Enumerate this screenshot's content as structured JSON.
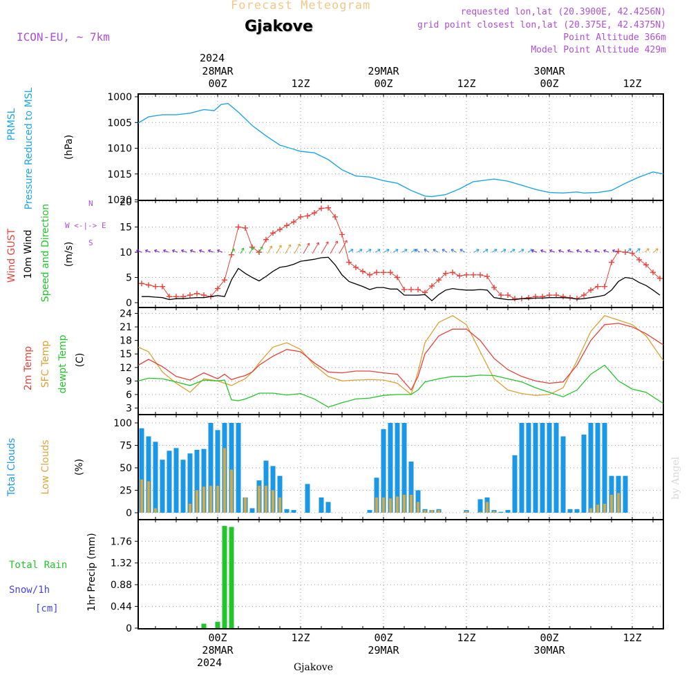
{
  "header": {
    "forecast_label": "Forecast Meteogram",
    "location": "Gjakove",
    "model": "ICON-EU, ~ 7km",
    "requested": "requested lon,lat (20.3900E, 42.4256N)",
    "grid_point": "grid point closest lon,lat (20.375E, 42.4375N)",
    "point_altitude": "Point Altitude 366m",
    "model_altitude": "Model Point Altitude 429m",
    "watermark": "by Angel",
    "footer_location": "Gjakove"
  },
  "time_axis": {
    "top_year": "2024",
    "ticks": [
      {
        "hour": 0,
        "label": "00Z",
        "date": "28MAR"
      },
      {
        "hour": 12,
        "label": "12Z",
        "date": ""
      },
      {
        "hour": 24,
        "label": "00Z",
        "date": "29MAR"
      },
      {
        "hour": 36,
        "label": "12Z",
        "date": ""
      },
      {
        "hour": 48,
        "label": "00Z",
        "date": "30MAR"
      },
      {
        "hour": 60,
        "label": "12Z",
        "date": ""
      }
    ],
    "bottom_year": "2024",
    "range_hours": [
      -11.5,
      64.5
    ]
  },
  "panel_labels": {
    "pressure": [
      "PRMSL",
      "Pressure Reduced to MSL",
      "(hPa)"
    ],
    "wind": [
      "Wind GUST",
      "10m Wind",
      "Speed and Direction",
      "(m/s)"
    ],
    "wind_rose": [
      "N",
      "W <-|-> E",
      "S"
    ],
    "temp": [
      "2m Temp",
      "SFC Temp",
      "dewpt Temp",
      "(C)"
    ],
    "clouds": [
      "Total Clouds",
      "Low Clouds",
      "(%)"
    ],
    "precip": [
      "Total  Rain",
      "Snow/1h",
      "[cm]",
      "1hr Precip (mm)"
    ]
  },
  "colors": {
    "pressure": "#1ea5e8",
    "gust": "#e8413a",
    "wind10": "#000000",
    "t2m": "#e8413a",
    "tsfc": "#e0a030",
    "dewpt": "#22c52a",
    "total_clouds": "#1a98e6",
    "low_clouds": "#d9a741",
    "rain": "#22c52a",
    "snow": "#4444ee",
    "label_purple": "#b04fd6"
  },
  "chart_data": [
    {
      "type": "line",
      "name": "pressure",
      "title": "PRMSL Pressure Reduced to MSL",
      "ylabel": "(hPa)",
      "ylim": [
        1000,
        1020
      ],
      "yticks": [
        1000,
        1005,
        1010,
        1015,
        1020
      ],
      "x": [
        -11.5,
        -10,
        -8,
        -6,
        -4,
        -2,
        -0.5,
        0.5,
        1.5,
        3,
        5,
        7,
        8,
        9,
        11,
        12,
        14,
        16,
        18,
        20,
        22,
        24,
        26,
        28,
        30,
        31,
        33,
        35,
        37,
        40,
        42,
        44,
        46,
        48,
        50,
        52,
        53,
        55,
        57,
        59,
        61,
        63,
        64.5
      ],
      "values": [
        1005.1,
        1003.9,
        1003.5,
        1003.5,
        1003.2,
        1002.5,
        1002.7,
        1001.5,
        1001.3,
        1003.0,
        1005.6,
        1007.6,
        1008.5,
        1009.4,
        1010.2,
        1010.6,
        1010.9,
        1012.2,
        1014.2,
        1015.4,
        1015.6,
        1016.3,
        1016.8,
        1018.2,
        1019.3,
        1019.4,
        1019.0,
        1017.9,
        1016.5,
        1016.0,
        1016.4,
        1017.2,
        1018.0,
        1018.6,
        1018.7,
        1018.5,
        1018.7,
        1018.6,
        1018.2,
        1016.8,
        1015.6,
        1014.6,
        1015.0
      ]
    },
    {
      "type": "line",
      "name": "wind",
      "title": "Wind GUST / 10m Wind",
      "ylabel": "(m/s)",
      "ylim": [
        0,
        20
      ],
      "yticks": [
        0,
        5,
        10,
        15,
        20
      ],
      "x": [
        -11,
        -10,
        -9,
        -8,
        -7,
        -6,
        -5,
        -4,
        -3,
        -2,
        -1,
        0,
        1,
        2,
        3,
        4,
        5,
        6,
        7,
        8,
        9,
        10,
        11,
        12,
        13,
        14,
        15,
        16,
        17,
        18,
        19,
        20,
        21,
        22,
        23,
        24,
        25,
        26,
        27,
        28,
        29,
        30,
        31,
        32,
        33,
        34,
        35,
        36,
        37,
        38,
        39,
        40,
        41,
        42,
        43,
        44,
        45,
        46,
        47,
        48,
        49,
        50,
        51,
        52,
        53,
        54,
        55,
        56,
        57,
        58,
        59,
        60,
        61,
        62,
        63,
        64
      ],
      "series": [
        {
          "name": "Wind GUST",
          "values": [
            3.8,
            3.5,
            3.2,
            3.2,
            1.2,
            1.2,
            1.2,
            1.5,
            1.8,
            1.5,
            1.2,
            2.8,
            4.5,
            9.5,
            15.0,
            14.8,
            11.0,
            10.0,
            12.5,
            13.8,
            14.5,
            15.3,
            16.0,
            17.0,
            17.2,
            17.8,
            18.7,
            18.8,
            17.0,
            13.5,
            8.0,
            7.0,
            6.2,
            5.5,
            6.0,
            6.0,
            6.0,
            5.0,
            2.6,
            2.6,
            2.6,
            2.0,
            3.3,
            4.5,
            5.8,
            6.0,
            5.3,
            5.5,
            5.5,
            5.5,
            5.2,
            3.0,
            1.5,
            1.5,
            0.8,
            0.8,
            1.0,
            1.2,
            1.2,
            1.5,
            1.5,
            1.2,
            1.0,
            0.8,
            1.5,
            2.5,
            3.2,
            3.2,
            8.0,
            10.2,
            10.0,
            9.8,
            8.5,
            7.5,
            6.0,
            4.8
          ]
        },
        {
          "name": "10m Wind",
          "values": [
            1.2,
            1.2,
            1.1,
            1.0,
            0.6,
            0.8,
            0.8,
            0.9,
            1.0,
            1.0,
            1.2,
            1.4,
            1.2,
            4.5,
            6.8,
            5.8,
            5.0,
            4.3,
            5.2,
            6.2,
            7.0,
            7.2,
            7.6,
            8.2,
            8.4,
            8.6,
            8.9,
            9.0,
            7.5,
            5.5,
            4.2,
            3.7,
            3.2,
            2.6,
            3.0,
            3.0,
            2.7,
            2.7,
            1.5,
            1.5,
            1.5,
            1.6,
            0.4,
            1.6,
            2.5,
            2.8,
            2.6,
            2.5,
            2.5,
            2.6,
            2.5,
            1.0,
            0.8,
            0.6,
            0.6,
            0.8,
            0.8,
            0.9,
            0.9,
            1.0,
            1.0,
            1.0,
            0.9,
            0.7,
            0.8,
            1.0,
            1.2,
            1.5,
            2.5,
            4.2,
            5.0,
            4.8,
            4.0,
            3.4,
            2.5,
            1.5
          ]
        }
      ]
    },
    {
      "type": "line",
      "name": "temperature",
      "title": "2m Temp / SFC Temp / dewpt Temp",
      "ylabel": "(C)",
      "ylim": [
        2,
        25
      ],
      "yticks": [
        3,
        6,
        9,
        12,
        15,
        18,
        21,
        24
      ],
      "x": [
        -11.5,
        -10,
        -8,
        -6,
        -4,
        -2,
        0,
        1,
        2,
        3,
        4,
        5,
        6,
        8,
        10,
        12,
        14,
        16,
        18,
        20,
        22,
        24,
        26,
        28,
        29,
        30,
        32,
        34,
        36,
        38,
        40,
        42,
        44,
        46,
        48,
        50,
        52,
        54,
        56,
        58,
        60,
        62,
        64.5
      ],
      "series": [
        {
          "name": "2m Temp",
          "values": [
            12.5,
            13.8,
            12.2,
            10.0,
            9.2,
            10.8,
            9.5,
            10.5,
            9.3,
            9.8,
            10.2,
            11.0,
            12.5,
            14.5,
            16.0,
            15.5,
            13.0,
            11.0,
            10.8,
            11.2,
            11.2,
            10.8,
            10.5,
            7.0,
            10.0,
            15.0,
            19.0,
            20.5,
            20.5,
            18.0,
            14.0,
            11.5,
            10.0,
            9.0,
            8.5,
            8.8,
            12.5,
            18.0,
            21.5,
            21.8,
            21.0,
            19.5,
            17.0
          ]
        },
        {
          "name": "SFC Temp",
          "values": [
            16.5,
            15.5,
            11.0,
            8.5,
            6.5,
            9.5,
            9.0,
            8.5,
            8.0,
            8.8,
            9.5,
            11.0,
            13.0,
            16.5,
            17.5,
            16.0,
            12.5,
            10.0,
            9.0,
            9.2,
            9.3,
            9.2,
            8.5,
            6.0,
            11.0,
            17.5,
            22.0,
            23.5,
            21.5,
            15.5,
            9.5,
            7.0,
            6.2,
            5.8,
            6.0,
            7.5,
            13.5,
            20.0,
            23.5,
            22.5,
            21.5,
            19.0,
            13.5
          ]
        },
        {
          "name": "dewpt Temp",
          "values": [
            9.0,
            9.6,
            9.5,
            8.8,
            8.0,
            9.2,
            9.0,
            9.2,
            4.8,
            4.6,
            5.0,
            5.6,
            6.3,
            6.3,
            5.9,
            6.2,
            5.0,
            3.2,
            4.2,
            5.0,
            5.2,
            5.8,
            6.0,
            6.0,
            7.0,
            8.8,
            9.5,
            10.0,
            10.0,
            10.3,
            10.2,
            9.5,
            8.8,
            7.5,
            6.5,
            5.5,
            7.0,
            10.5,
            12.5,
            9.0,
            7.2,
            6.5,
            4.0
          ]
        }
      ]
    },
    {
      "type": "bar",
      "name": "clouds",
      "title": "Total Clouds / Low Clouds",
      "ylabel": "(%)",
      "ylim": [
        0,
        100
      ],
      "yticks": [
        0,
        25,
        50,
        75,
        100
      ],
      "x": [
        -11,
        -10,
        -9,
        -8,
        -7,
        -6,
        -5,
        -4,
        -3,
        -2,
        -1,
        0,
        1,
        2,
        3,
        4,
        5,
        6,
        7,
        8,
        9,
        10,
        11,
        12,
        13,
        14,
        15,
        16,
        17,
        18,
        19,
        20,
        21,
        22,
        23,
        24,
        25,
        26,
        27,
        28,
        29,
        30,
        31,
        32,
        33,
        34,
        35,
        36,
        37,
        38,
        39,
        40,
        41,
        42,
        43,
        44,
        45,
        46,
        47,
        48,
        49,
        50,
        51,
        52,
        53,
        54,
        55,
        56,
        57,
        58,
        59,
        60,
        61,
        62,
        63,
        64
      ],
      "series": [
        {
          "name": "Total Clouds",
          "values": [
            94,
            85,
            79,
            59,
            69,
            72,
            59,
            66,
            70,
            71,
            100,
            92,
            100,
            100,
            100,
            17,
            5,
            36,
            58,
            52,
            41,
            4,
            3,
            0,
            32,
            0,
            17,
            12,
            0,
            0,
            0,
            0,
            0,
            3,
            39,
            93,
            100,
            100,
            100,
            57,
            25,
            4,
            3,
            4,
            0,
            0,
            0,
            3,
            0,
            15,
            17,
            3,
            1,
            3,
            64,
            100,
            100,
            100,
            100,
            100,
            100,
            85,
            4,
            4,
            87,
            100,
            100,
            100,
            41,
            41,
            41,
            0,
            0,
            0,
            0,
            0
          ]
        },
        {
          "name": "Low Clouds",
          "values": [
            37,
            35,
            5,
            0,
            0,
            0,
            0,
            10,
            25,
            29,
            30,
            30,
            72,
            48,
            0,
            17,
            0,
            30,
            30,
            25,
            17,
            0,
            0,
            0,
            0,
            0,
            0,
            0,
            0,
            0,
            0,
            0,
            0,
            0,
            17,
            17,
            16,
            18,
            20,
            20,
            12,
            3,
            3,
            3,
            0,
            0,
            0,
            2,
            0,
            1,
            12,
            2,
            0,
            0,
            0,
            0,
            0,
            0,
            0,
            0,
            0,
            0,
            0,
            0,
            0,
            5,
            9,
            10,
            20,
            22,
            0,
            0,
            0,
            0,
            0,
            0
          ]
        }
      ]
    },
    {
      "type": "bar",
      "name": "precipitation",
      "title": "1hr Precip (mm)",
      "ylabel": "1hr Precip (mm)",
      "ylim": [
        0,
        2.1
      ],
      "yticks": [
        0,
        0.44,
        0.88,
        1.32,
        1.76
      ],
      "ytick_labels": [
        "0",
        "0.44",
        "0.88",
        "1.32",
        "1.76"
      ],
      "x": [
        -2,
        0,
        1,
        2
      ],
      "series": [
        {
          "name": "Total Rain",
          "values": [
            0.09,
            0.13,
            2.07,
            2.05
          ]
        }
      ]
    }
  ]
}
